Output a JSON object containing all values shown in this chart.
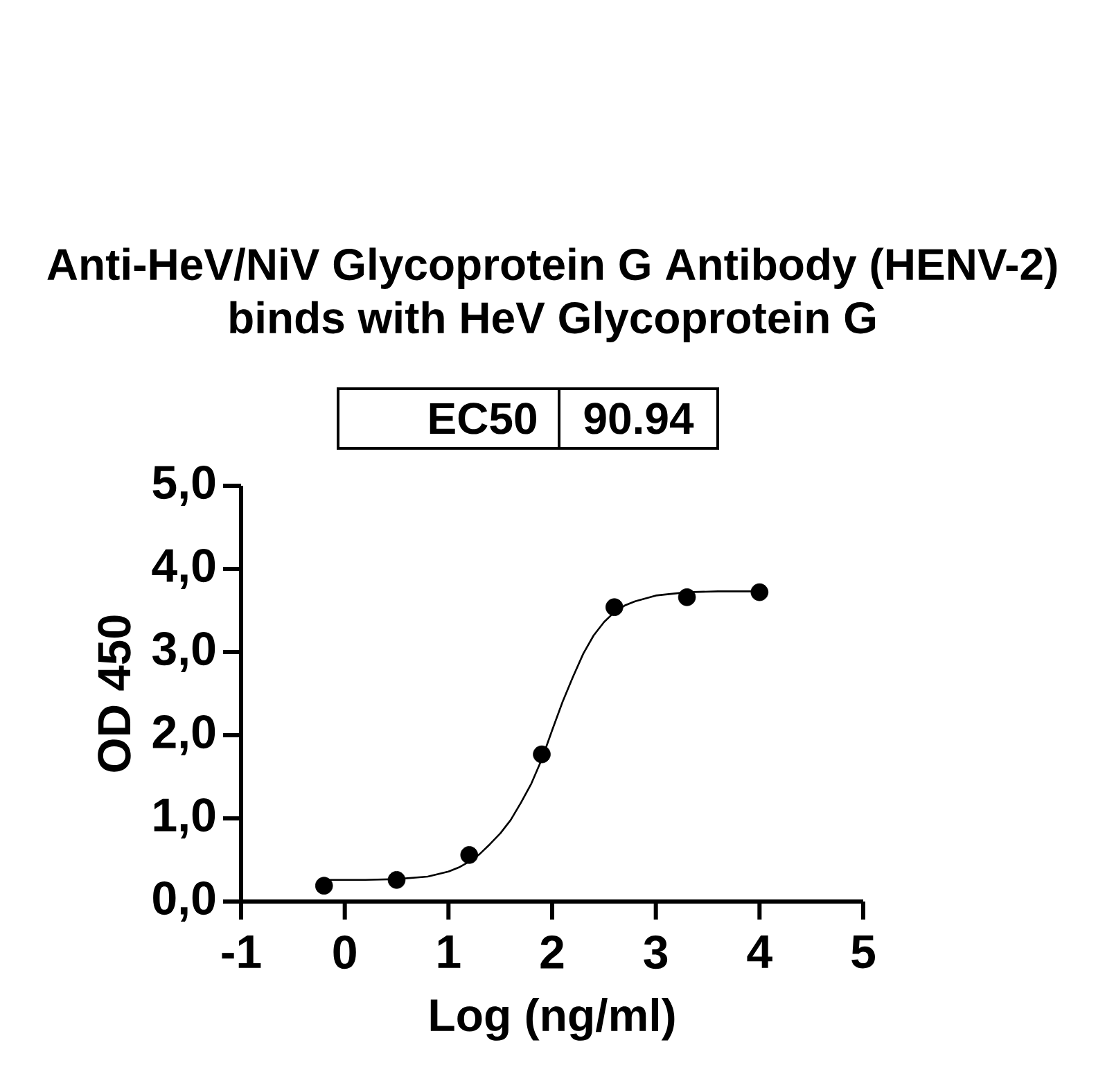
{
  "chart_data": {
    "type": "scatter",
    "title": "Anti-HeV/NiV Glycoprotein G Antibody (HENV-2) binds with HeV Glycoprotein G",
    "annotations": [
      "EC50",
      "90.94"
    ],
    "xlabel": "Log (ng/ml)",
    "ylabel": "OD 450",
    "xlim": [
      -1,
      5
    ],
    "xticks": [
      -1,
      0,
      1,
      2,
      3,
      4,
      5
    ],
    "ylim": [
      0,
      5
    ],
    "yticks": [
      {
        "value": 0,
        "label": "0,0"
      },
      {
        "value": 1,
        "label": "1,0"
      },
      {
        "value": 2,
        "label": "2,0"
      },
      {
        "value": 3,
        "label": "3,0"
      },
      {
        "value": 4,
        "label": "4,0"
      },
      {
        "value": 5,
        "label": "5,0"
      }
    ],
    "series": [
      {
        "type": "line",
        "color": "#000000",
        "marker": "none",
        "x": [
          -0.2,
          0.2,
          0.5,
          0.8,
          1.0,
          1.1,
          1.2,
          1.3,
          1.4,
          1.5,
          1.6,
          1.7,
          1.8,
          1.9,
          2.0,
          2.1,
          2.2,
          2.3,
          2.4,
          2.5,
          2.6,
          2.7,
          2.8,
          3.0,
          3.3,
          3.6,
          4.0
        ],
        "values": [
          0.26,
          0.26,
          0.27,
          0.3,
          0.36,
          0.41,
          0.48,
          0.57,
          0.69,
          0.82,
          0.98,
          1.19,
          1.42,
          1.71,
          2.06,
          2.4,
          2.7,
          2.98,
          3.2,
          3.36,
          3.48,
          3.56,
          3.61,
          3.68,
          3.72,
          3.73,
          3.73
        ]
      },
      {
        "color": "#000000",
        "marker": "circle",
        "x": [
          -0.2,
          0.5,
          1.2,
          1.9,
          2.6,
          3.3,
          4.0
        ],
        "values": [
          0.19,
          0.26,
          0.56,
          1.77,
          3.54,
          3.66,
          3.72
        ]
      }
    ]
  }
}
